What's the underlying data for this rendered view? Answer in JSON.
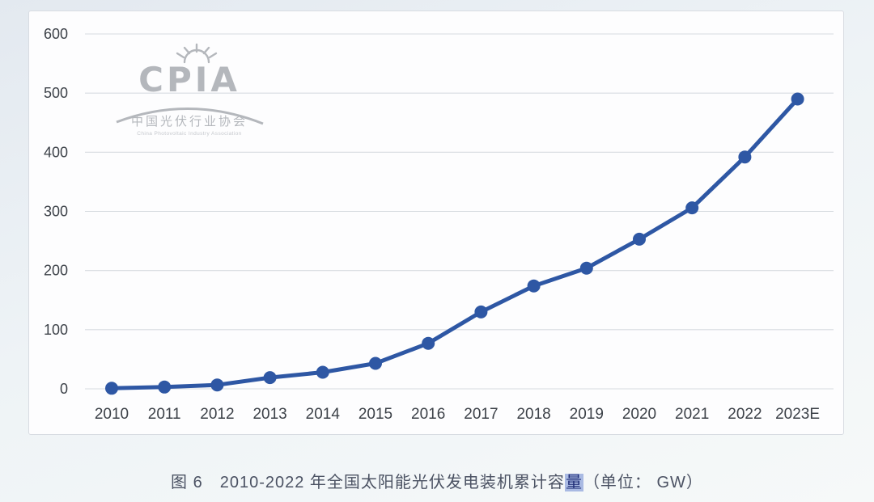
{
  "chart_data": {
    "type": "line",
    "caption": {
      "prefix": "图 6　2010-2022 年全国太阳能光伏发电装机累计容",
      "highlight": "量",
      "suffix": "（单位： GW）"
    },
    "categories": [
      "2010",
      "2011",
      "2012",
      "2013",
      "2014",
      "2015",
      "2016",
      "2017",
      "2018",
      "2019",
      "2020",
      "2021",
      "2022",
      "2023E"
    ],
    "values": [
      0.9,
      3,
      6.5,
      19,
      28,
      43,
      77,
      130,
      174,
      204,
      253,
      306,
      392,
      490
    ],
    "unit": "GW",
    "ylim": [
      0,
      600
    ],
    "yticks": [
      0,
      100,
      200,
      300,
      400,
      500,
      600
    ],
    "xlabel": "",
    "ylabel": "",
    "grid": true,
    "legend_position": "none",
    "line_color": "#2e57a4",
    "marker_color": "#2e57a4"
  },
  "watermark": {
    "brand": "CPIA",
    "icon": "sunburst-icon",
    "org_cn": "中国光伏行业协会",
    "org_en": "China Photovoltaic Industry Association",
    "color": "#b4b7bc"
  },
  "colors": {
    "background_top": "#e3e9f0",
    "background_bottom": "#f6f9f9",
    "panel_bg": "#fdfdfe",
    "panel_border": "#d8dce2",
    "grid_color": "#d7dbe0",
    "tick_text": "#3c4148",
    "caption_text": "#4b5263",
    "highlight_bg": "#a9bae3",
    "highlight_text": "#1f2d76"
  }
}
